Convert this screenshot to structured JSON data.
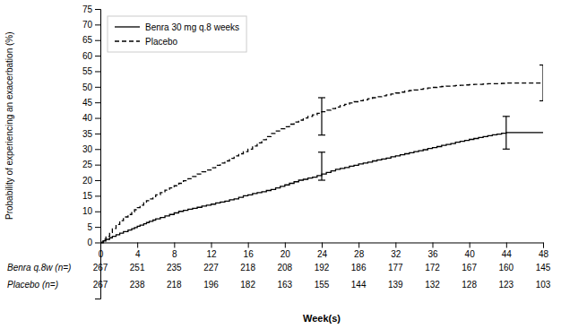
{
  "chart_data": {
    "type": "line",
    "xlabel": "Week(s)",
    "ylabel": "Probability of experiencing an exacerbation (%)",
    "xlim": [
      0,
      48
    ],
    "ylim": [
      -18,
      75
    ],
    "xticks": [
      0,
      4,
      8,
      12,
      16,
      20,
      24,
      28,
      32,
      36,
      40,
      44,
      48
    ],
    "yticks": [
      0,
      5,
      10,
      15,
      20,
      25,
      30,
      35,
      40,
      45,
      50,
      55,
      60,
      65,
      70,
      75
    ],
    "legend": "upper left",
    "x": [
      0,
      0.3,
      0.6,
      1.0,
      1.3,
      1.7,
      2.1,
      2.5,
      3.0,
      3.4,
      3.7,
      4.0,
      4.3,
      4.7,
      5.0,
      5.3,
      5.7,
      6.0,
      6.5,
      7.0,
      7.5,
      8.0,
      8.5,
      9.0,
      9.5,
      10.0,
      10.5,
      11.0,
      11.5,
      12.0,
      12.5,
      13.0,
      13.5,
      14.0,
      14.5,
      15.0,
      15.5,
      16.0,
      16.5,
      17.0,
      17.5,
      18.0,
      18.5,
      19.0,
      19.5,
      20.0,
      20.5,
      21.0,
      21.5,
      22.0,
      22.5,
      23.0,
      23.5,
      24.0,
      24.5,
      25.0,
      25.5,
      26.0,
      26.5,
      27.0,
      27.5,
      28.0,
      28.5,
      29.0,
      29.5,
      30.0,
      30.5,
      31.0,
      31.5,
      32.0,
      32.5,
      33.0,
      33.5,
      34.0,
      34.5,
      35.0,
      35.5,
      36.0,
      36.5,
      37.0,
      37.5,
      38.0,
      38.5,
      39.0,
      39.5,
      40.0,
      40.5,
      41.0,
      41.5,
      42.0,
      42.5,
      43.0,
      43.5,
      44.0,
      44.5,
      45.0,
      45.5,
      46.0,
      46.5,
      47.0,
      47.5,
      48.0
    ],
    "series": [
      {
        "name": "Benra 30 mg q.8 weeks",
        "color": "#000000",
        "line_style": "solid",
        "values": [
          0,
          0.5,
          1.0,
          1.5,
          2.0,
          2.5,
          3.0,
          3.5,
          4.0,
          4.4,
          4.8,
          5.2,
          5.6,
          6.0,
          6.4,
          6.8,
          7.2,
          7.6,
          8.0,
          8.5,
          9.0,
          9.5,
          10.0,
          10.3,
          10.7,
          11.0,
          11.3,
          11.7,
          12.0,
          12.3,
          12.7,
          13.0,
          13.3,
          13.7,
          14.0,
          14.5,
          15.0,
          15.3,
          15.7,
          16.0,
          16.3,
          16.7,
          17.0,
          17.5,
          18.0,
          18.5,
          19.0,
          19.5,
          20.0,
          20.3,
          20.7,
          21.0,
          21.5,
          22.0,
          22.5,
          23.0,
          23.5,
          23.8,
          24.1,
          24.5,
          24.8,
          25.2,
          25.5,
          25.8,
          26.2,
          26.5,
          26.8,
          27.1,
          27.5,
          27.8,
          28.2,
          28.5,
          28.8,
          29.2,
          29.5,
          29.8,
          30.2,
          30.5,
          30.8,
          31.2,
          31.5,
          31.8,
          32.2,
          32.5,
          32.8,
          33.1,
          33.4,
          33.7,
          34.0,
          34.3,
          34.6,
          34.8,
          35.1,
          35.3,
          35.3,
          35.3,
          35.3,
          35.3,
          35.3,
          35.3,
          35.3,
          35.3
        ],
        "error_bars": {
          "x": [
            24,
            44
          ],
          "low": [
            20.0,
            30.0
          ],
          "high": [
            29.0,
            40.5
          ]
        }
      },
      {
        "name": "Placebo",
        "color": "#000000",
        "line_style": "dashed",
        "values": [
          0,
          1.0,
          2.0,
          3.2,
          4.5,
          5.8,
          7.0,
          8.2,
          9.0,
          9.8,
          10.5,
          11.2,
          12.0,
          12.8,
          13.4,
          14.0,
          14.7,
          15.3,
          16.0,
          16.8,
          17.5,
          18.2,
          19.0,
          19.8,
          20.5,
          21.2,
          22.0,
          22.7,
          23.3,
          24.0,
          24.8,
          25.5,
          26.2,
          27.0,
          27.8,
          28.5,
          29.2,
          30.0,
          31.0,
          32.0,
          33.0,
          34.0,
          35.0,
          35.8,
          36.5,
          37.2,
          38.0,
          38.7,
          39.3,
          40.0,
          40.5,
          41.0,
          41.5,
          42.0,
          42.5,
          43.0,
          43.5,
          44.0,
          44.4,
          44.8,
          45.2,
          45.5,
          45.8,
          46.2,
          46.5,
          46.8,
          47.1,
          47.4,
          47.7,
          48.0,
          48.3,
          48.6,
          48.8,
          49.0,
          49.2,
          49.4,
          49.6,
          49.8,
          50.0,
          50.1,
          50.2,
          50.3,
          50.4,
          50.5,
          50.6,
          50.7,
          50.8,
          50.8,
          50.9,
          51.0,
          51.0,
          51.0,
          51.1,
          51.2,
          51.2,
          51.2,
          51.2,
          51.2,
          51.2,
          51.2,
          51.2,
          51.2
        ],
        "error_bars": {
          "x": [
            24,
            48
          ],
          "low": [
            34.5,
            45.5
          ],
          "high": [
            46.5,
            57.0
          ]
        }
      }
    ],
    "at_risk": {
      "x": [
        0,
        4,
        8,
        12,
        16,
        20,
        24,
        28,
        32,
        36,
        40,
        44,
        48
      ],
      "rows": [
        {
          "label": "Benra q.8w (n=)",
          "values": [
            267,
            251,
            235,
            227,
            218,
            208,
            192,
            186,
            177,
            172,
            167,
            160,
            145
          ]
        },
        {
          "label": "Placebo (n=)",
          "values": [
            267,
            238,
            218,
            196,
            182,
            163,
            155,
            144,
            139,
            132,
            128,
            123,
            103
          ]
        }
      ]
    }
  }
}
